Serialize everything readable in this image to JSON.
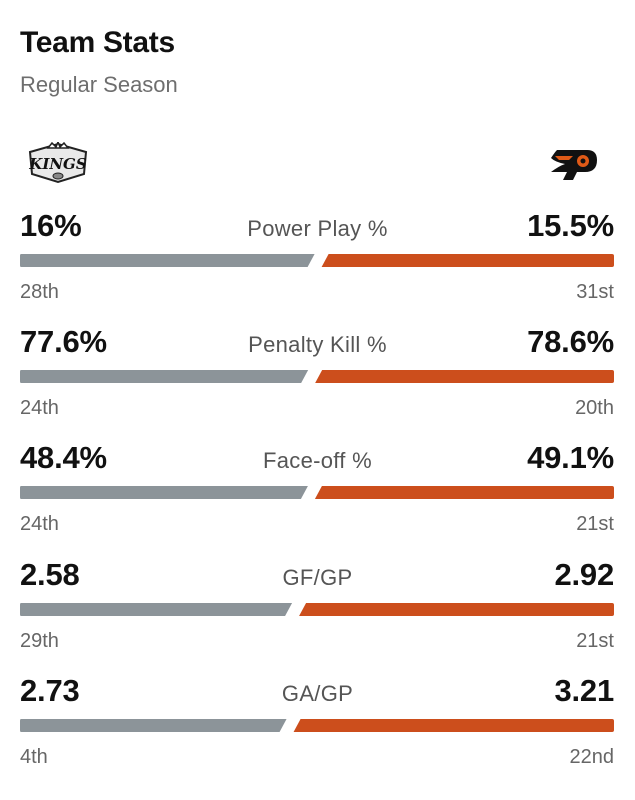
{
  "header": {
    "title": "Team Stats",
    "subtitle": "Regular Season"
  },
  "teams": {
    "left": {
      "logo_icon": "la-kings-logo-icon",
      "logo_text": "KINGS",
      "bar_color": "#8c9499"
    },
    "right": {
      "logo_icon": "flyers-logo-icon",
      "bar_color": "#cc4e1c"
    }
  },
  "stats": [
    {
      "label": "Power Play %",
      "left_value": "16%",
      "right_value": "15.5%",
      "left_rank": "28th",
      "right_rank": "31st",
      "left_num": 16,
      "right_num": 15.5
    },
    {
      "label": "Penalty Kill %",
      "left_value": "77.6%",
      "right_value": "78.6%",
      "left_rank": "24th",
      "right_rank": "20th",
      "left_num": 77.6,
      "right_num": 78.6
    },
    {
      "label": "Face-off %",
      "left_value": "48.4%",
      "right_value": "49.1%",
      "left_rank": "24th",
      "right_rank": "21st",
      "left_num": 48.4,
      "right_num": 49.1
    },
    {
      "label": "GF/GP",
      "left_value": "2.58",
      "right_value": "2.92",
      "left_rank": "29th",
      "right_rank": "21st",
      "left_num": 2.58,
      "right_num": 2.92
    },
    {
      "label": "GA/GP",
      "left_value": "2.73",
      "right_value": "3.21",
      "left_rank": "4th",
      "right_rank": "22nd",
      "left_num": 2.73,
      "right_num": 3.21
    }
  ]
}
